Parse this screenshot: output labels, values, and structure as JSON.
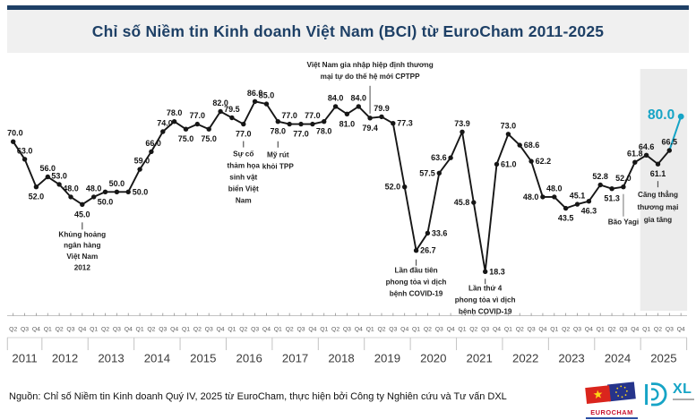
{
  "title": "Chỉ số Niềm tin Kinh doanh Việt Nam (BCI) từ EuroCham 2011-2025",
  "source": "Nguồn: Chỉ số Niềm tin Kinh doanh Quý IV, 2025 từ EuroCham, thực hiện bởi Công ty Nghiên cứu và Tư vấn DXL",
  "logos": {
    "eurocham": "EUROCHAM",
    "dxl_suffix": "XL"
  },
  "colors": {
    "accent_navy": "#1E4066",
    "accent_teal": "#16A4C6",
    "line": "#161616",
    "highlight_band": "#ECECEC",
    "title_band_bg": "#F0F0F0",
    "axis_gray": "#C3C3C3",
    "text_gray": "#585858",
    "eurocham_red": "#C8102E",
    "vn_flag_red": "#DA251D",
    "eu_flag_blue": "#26348B",
    "star_yellow": "#FFD617"
  },
  "chart_data": {
    "type": "line",
    "title": "Chỉ số Niềm tin Kinh doanh Việt Nam (BCI) từ EuroCham 2011-2025",
    "xlabel": "",
    "ylabel": "",
    "grid": false,
    "ylim": [
      15,
      90
    ],
    "years": [
      {
        "label": "2011",
        "quarters": [
          "Q2",
          "Q3",
          "Q4"
        ]
      },
      {
        "label": "2012",
        "quarters": [
          "Q1",
          "Q2",
          "Q3",
          "Q4"
        ]
      },
      {
        "label": "2013",
        "quarters": [
          "Q1",
          "Q2",
          "Q3",
          "Q4"
        ]
      },
      {
        "label": "2014",
        "quarters": [
          "Q1",
          "Q2",
          "Q3",
          "Q4"
        ]
      },
      {
        "label": "2015",
        "quarters": [
          "Q1",
          "Q2",
          "Q3",
          "Q4"
        ]
      },
      {
        "label": "2016",
        "quarters": [
          "Q1",
          "Q2",
          "Q3",
          "Q4"
        ]
      },
      {
        "label": "2017",
        "quarters": [
          "Q1",
          "Q2",
          "Q3",
          "Q4"
        ]
      },
      {
        "label": "2018",
        "quarters": [
          "Q1",
          "Q2",
          "Q3",
          "Q4"
        ]
      },
      {
        "label": "2019",
        "quarters": [
          "Q1",
          "Q2",
          "Q3",
          "Q4"
        ]
      },
      {
        "label": "2020",
        "quarters": [
          "Q1",
          "Q2",
          "Q3",
          "Q4"
        ]
      },
      {
        "label": "2021",
        "quarters": [
          "Q1",
          "Q2",
          "Q3",
          "Q4"
        ]
      },
      {
        "label": "2022",
        "quarters": [
          "Q1",
          "Q2",
          "Q3",
          "Q4"
        ]
      },
      {
        "label": "2023",
        "quarters": [
          "Q1",
          "Q2",
          "Q3",
          "Q4"
        ]
      },
      {
        "label": "2024",
        "quarters": [
          "Q1",
          "Q2",
          "Q3",
          "Q4"
        ]
      },
      {
        "label": "2025",
        "quarters": [
          "Q1",
          "Q2",
          "Q3",
          "Q4"
        ]
      }
    ],
    "values": [
      70.0,
      63.0,
      52.0,
      56.0,
      53.0,
      48.0,
      45.0,
      48.0,
      50.0,
      50.0,
      50.0,
      59.0,
      66.0,
      74.0,
      78.0,
      75.0,
      77.0,
      75.0,
      82.0,
      79.5,
      77.0,
      86.0,
      85.0,
      78.0,
      77.0,
      77.0,
      77.0,
      78.0,
      84.0,
      81.0,
      84.0,
      79.4,
      79.9,
      77.3,
      52.0,
      26.7,
      33.6,
      57.5,
      63.6,
      73.9,
      45.8,
      18.3,
      61.0,
      73.0,
      68.6,
      62.2,
      48.0,
      48.0,
      43.5,
      45.1,
      46.3,
      52.8,
      51.3,
      52.0,
      61.8,
      64.6,
      61.1,
      66.5,
      80.0
    ],
    "label_positions": [
      "above-left",
      "above",
      "below",
      "above",
      "above",
      "above",
      "below",
      "above",
      "below",
      "above",
      "right",
      "above-left",
      "above-left",
      "above-left",
      "above",
      "below",
      "above",
      "below",
      "above",
      "above",
      "below",
      "above",
      "above",
      "below",
      "above",
      "below",
      "above",
      "below",
      "above",
      "below",
      "above",
      "below",
      "above",
      "right",
      "left",
      "right",
      "right",
      "left",
      "left",
      "above",
      "left",
      "right",
      "right",
      "above",
      "right",
      "right",
      "left",
      "above",
      "below",
      "above",
      "below",
      "above",
      "below",
      "above",
      "above",
      "above",
      "below",
      "above",
      "big"
    ],
    "highlight": {
      "start": "Q1 2025",
      "end": "Q4 2025"
    },
    "annotations": [
      {
        "id": "banking-crisis-2012",
        "quarter": "Q4 2012",
        "side": "below",
        "lines": [
          "Khủng hoảng",
          "ngân hàng",
          "Việt Nam",
          "2012"
        ]
      },
      {
        "id": "marine-disaster-2016",
        "quarter": "Q2 2016",
        "side": "below",
        "lines": [
          "Sự cố",
          "thảm họa",
          "sinh vật",
          "biển Việt",
          "Nam"
        ]
      },
      {
        "id": "us-tpp-withdrawal",
        "quarter": "Q1 2017",
        "side": "below",
        "lines": [
          "Mỹ rút",
          "khỏi TPP"
        ]
      },
      {
        "id": "cptpp-accession",
        "quarter": "Q1 2019",
        "side": "above",
        "lines": [
          "Việt Nam gia nhập hiệp định thương",
          "mại tự do thế hệ mới CPTPP"
        ]
      },
      {
        "id": "covid-first-lockdown",
        "quarter": "Q1 2020",
        "side": "below",
        "lines": [
          "Lần đầu tiên",
          "phong tỏa vì dịch",
          "bệnh COVID-19"
        ]
      },
      {
        "id": "covid-fourth-lockdown",
        "quarter": "Q3 2021",
        "side": "below",
        "lines": [
          "Lần thứ 4",
          "phong tỏa vì dịch",
          "bệnh COVID-19"
        ]
      },
      {
        "id": "typhoon-yagi",
        "quarter": "Q3 2024",
        "side": "below",
        "lines": [
          "Bão Yagi"
        ]
      },
      {
        "id": "trade-tensions",
        "quarter": "Q2 2025",
        "side": "below",
        "lines": [
          "Căng thẳng",
          "thương mại",
          "gia tăng"
        ]
      }
    ]
  }
}
